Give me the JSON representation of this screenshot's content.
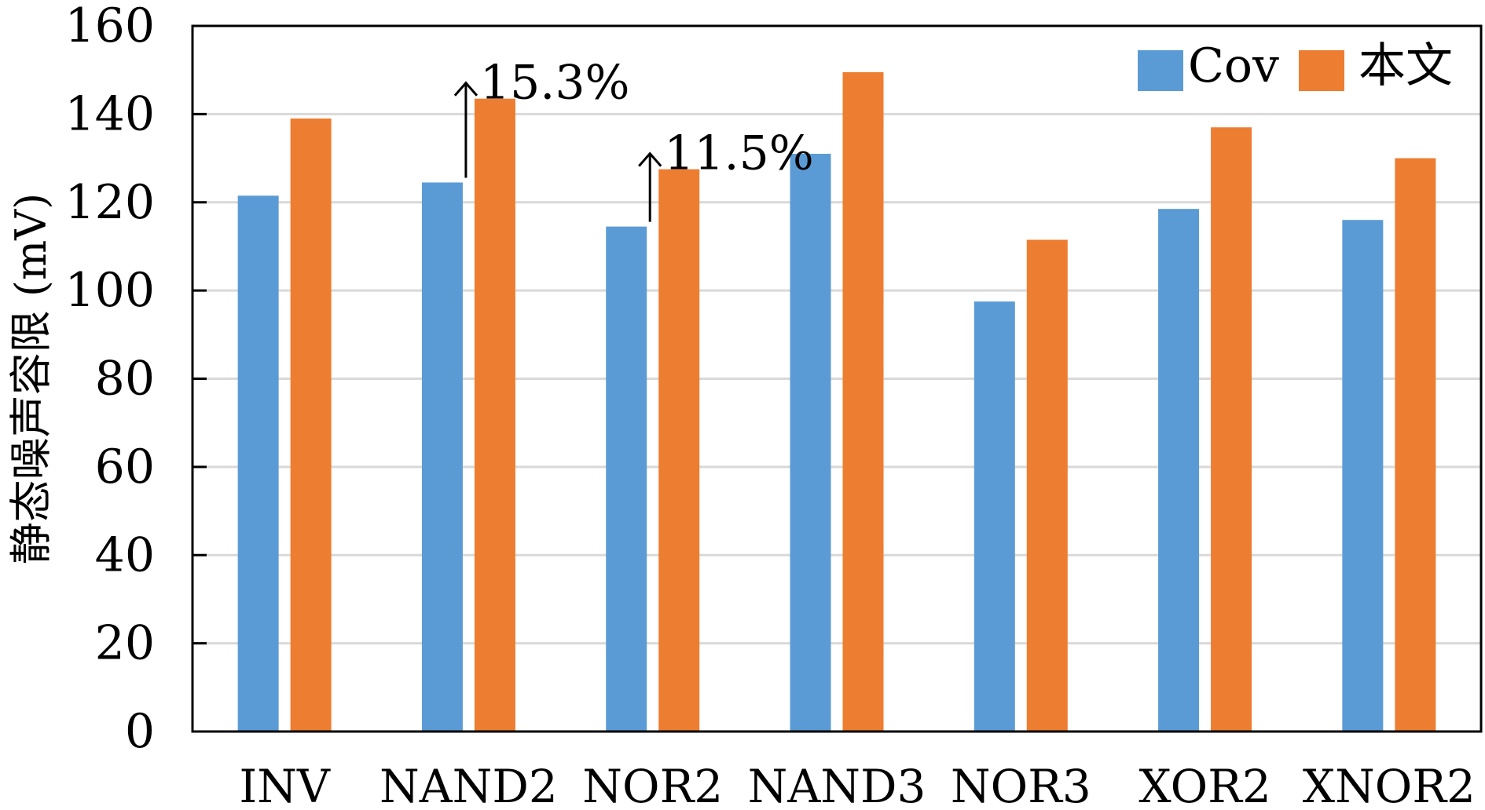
{
  "chart_data": {
    "type": "bar",
    "title": "",
    "xlabel": "",
    "ylabel": "静态噪声容限 (mV)",
    "categories": [
      "INV",
      "NAND2",
      "NOR2",
      "NAND3",
      "NOR3",
      "XOR2",
      "XNOR2"
    ],
    "series": [
      {
        "name": "Cov",
        "color": "#5b9bd5",
        "values": [
          121.5,
          124.5,
          114.5,
          131,
          97.5,
          118.5,
          116
        ]
      },
      {
        "name": "本文",
        "color": "#ed7d31",
        "values": [
          139,
          143.5,
          127.5,
          149.5,
          111.5,
          137,
          130
        ]
      }
    ],
    "ylim": [
      0,
      160
    ],
    "yticks": [
      0,
      20,
      40,
      60,
      80,
      100,
      120,
      140,
      160
    ],
    "grid": true,
    "legend_position": "top-right",
    "annotations": [
      {
        "category": "NAND2",
        "text": "15.3%"
      },
      {
        "category": "NOR2",
        "text": "11.5%"
      }
    ]
  }
}
